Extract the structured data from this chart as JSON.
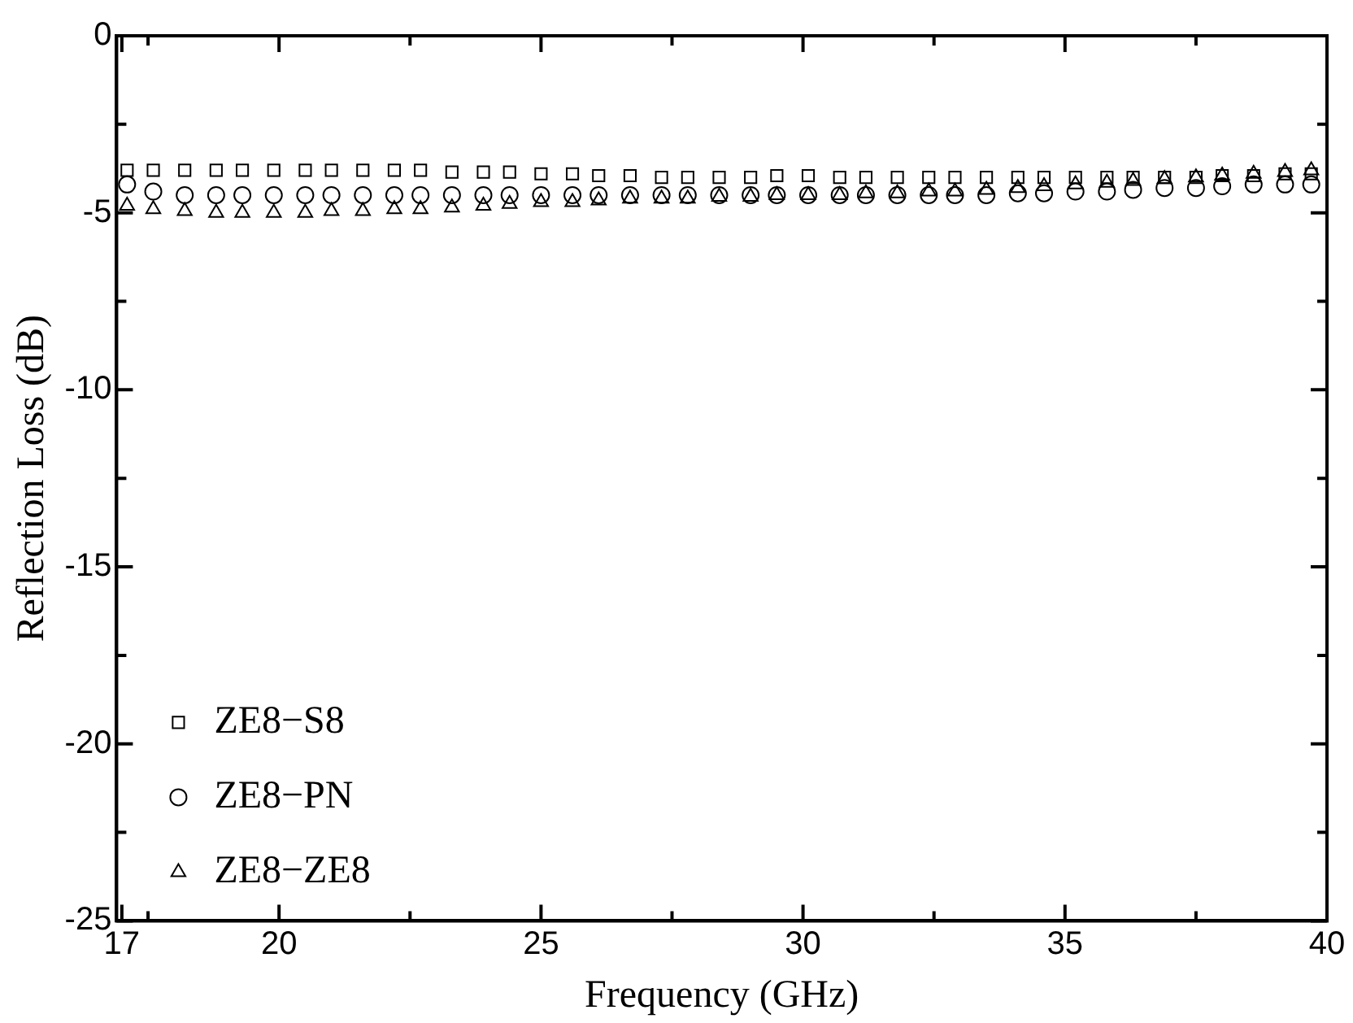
{
  "chart_data": {
    "type": "scatter",
    "xlabel": "Frequency (GHz)",
    "ylabel": "Reflection Loss (dB)",
    "x": [
      17.1,
      17.6,
      18.2,
      18.8,
      19.3,
      19.9,
      20.5,
      21.0,
      21.6,
      22.2,
      22.7,
      23.3,
      23.9,
      24.4,
      25.0,
      25.6,
      26.1,
      26.7,
      27.3,
      27.8,
      28.4,
      29.0,
      29.5,
      30.1,
      30.7,
      31.2,
      31.8,
      32.4,
      32.9,
      33.5,
      34.1,
      34.6,
      35.2,
      35.8,
      36.3,
      36.9,
      37.5,
      38.0,
      38.6,
      39.2,
      39.7
    ],
    "series": [
      {
        "name": "ZE8−S8",
        "color": "#000000",
        "marker": "square",
        "values": [
          -3.8,
          -3.8,
          -3.8,
          -3.8,
          -3.8,
          -3.8,
          -3.8,
          -3.8,
          -3.8,
          -3.8,
          -3.8,
          -3.85,
          -3.85,
          -3.85,
          -3.9,
          -3.9,
          -3.95,
          -3.95,
          -4.0,
          -4.0,
          -4.0,
          -4.0,
          -3.95,
          -3.95,
          -4.0,
          -4.0,
          -4.0,
          -4.0,
          -4.0,
          -4.0,
          -4.0,
          -4.0,
          -4.0,
          -4.0,
          -4.0,
          -4.0,
          -4.0,
          -3.95,
          -3.95,
          -3.9,
          -3.9
        ]
      },
      {
        "name": "ZE8−PN",
        "color": "#000000",
        "marker": "circle",
        "values": [
          -4.2,
          -4.4,
          -4.5,
          -4.5,
          -4.5,
          -4.5,
          -4.5,
          -4.5,
          -4.5,
          -4.5,
          -4.5,
          -4.5,
          -4.5,
          -4.5,
          -4.5,
          -4.5,
          -4.5,
          -4.5,
          -4.5,
          -4.5,
          -4.5,
          -4.5,
          -4.5,
          -4.5,
          -4.5,
          -4.5,
          -4.5,
          -4.5,
          -4.5,
          -4.5,
          -4.45,
          -4.45,
          -4.4,
          -4.4,
          -4.35,
          -4.3,
          -4.3,
          -4.25,
          -4.2,
          -4.2,
          -4.2
        ]
      },
      {
        "name": "ZE8−ZE8",
        "color": "#000000",
        "marker": "triangle",
        "values": [
          -4.8,
          -4.9,
          -4.95,
          -5.0,
          -5.0,
          -5.0,
          -5.0,
          -4.95,
          -4.95,
          -4.9,
          -4.9,
          -4.85,
          -4.8,
          -4.75,
          -4.7,
          -4.7,
          -4.65,
          -4.6,
          -4.6,
          -4.6,
          -4.55,
          -4.55,
          -4.5,
          -4.5,
          -4.5,
          -4.45,
          -4.45,
          -4.4,
          -4.4,
          -4.35,
          -4.3,
          -4.25,
          -4.2,
          -4.15,
          -4.1,
          -4.05,
          -4.0,
          -3.95,
          -3.9,
          -3.85,
          -3.8
        ]
      }
    ],
    "xlim": [
      16.9,
      40
    ],
    "xticks": [
      17,
      {
        "value": 17.5,
        "label": null
      },
      20,
      {
        "value": 22.5,
        "label": null
      },
      25,
      {
        "value": 27.5,
        "label": null
      },
      30,
      {
        "value": 32.5,
        "label": null
      },
      35,
      {
        "value": 37.5,
        "label": null
      },
      40
    ],
    "ylim": [
      -25,
      0
    ],
    "yticks": [
      -25,
      {
        "value": -22.5,
        "label": null
      },
      -20,
      {
        "value": -17.5,
        "label": null
      },
      -15,
      {
        "value": -12.5,
        "label": null
      },
      -10,
      {
        "value": -7.5,
        "label": null
      },
      -5,
      {
        "value": -2.5,
        "label": null
      },
      0
    ],
    "legend": "bottom left",
    "grid": false
  }
}
